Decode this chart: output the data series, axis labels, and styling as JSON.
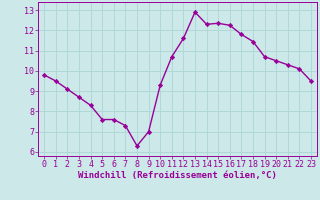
{
  "x": [
    0,
    1,
    2,
    3,
    4,
    5,
    6,
    7,
    8,
    9,
    10,
    11,
    12,
    13,
    14,
    15,
    16,
    17,
    18,
    19,
    20,
    21,
    22,
    23
  ],
  "y": [
    9.8,
    9.5,
    9.1,
    8.7,
    8.3,
    7.6,
    7.6,
    7.3,
    6.3,
    7.0,
    9.3,
    10.7,
    11.6,
    12.9,
    12.3,
    12.35,
    12.25,
    11.8,
    11.45,
    10.7,
    10.5,
    10.3,
    10.1,
    9.5
  ],
  "line_color": "#990099",
  "marker": "D",
  "markersize": 2.2,
  "linewidth": 1.0,
  "bg_color": "#cce8e8",
  "grid_color": "#b0d8d8",
  "xlabel": "Windchill (Refroidissement éolien,°C)",
  "xlabel_color": "#990099",
  "xlabel_fontsize": 6.5,
  "tick_color": "#990099",
  "tick_fontsize": 6.0,
  "xlim": [
    -0.5,
    23.5
  ],
  "ylim": [
    5.8,
    13.4
  ],
  "yticks": [
    6,
    7,
    8,
    9,
    10,
    11,
    12,
    13
  ],
  "xticks": [
    0,
    1,
    2,
    3,
    4,
    5,
    6,
    7,
    8,
    9,
    10,
    11,
    12,
    13,
    14,
    15,
    16,
    17,
    18,
    19,
    20,
    21,
    22,
    23
  ],
  "spine_color": "#990099"
}
